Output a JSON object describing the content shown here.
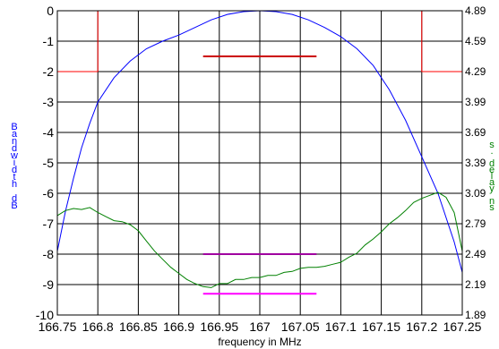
{
  "chart_data": {
    "type": "line",
    "xlabel": "frequency in MHz",
    "xlim": [
      166.75,
      167.25
    ],
    "x_ticks": [
      "166.75",
      "166.8",
      "166.85",
      "166.9",
      "166.95",
      "167",
      "167.05",
      "167.1",
      "167.15",
      "167.2",
      "167.25"
    ],
    "ylim": [
      -10,
      0
    ],
    "y_ticks": [
      "0",
      "-1",
      "-2",
      "-3",
      "-4",
      "-5",
      "-6",
      "-7",
      "-8",
      "-9",
      "-10"
    ],
    "y2lim": [
      1.89,
      4.89
    ],
    "y2_ticks": [
      "4.89",
      "4.59",
      "4.29",
      "3.99",
      "3.69",
      "3.39",
      "3.09",
      "2.79",
      "2.49",
      "2.19",
      "1.89"
    ],
    "left_axis_label": "Bandwidth dB",
    "left_axis_label_color": "#0000ff",
    "right_axis_label": "s. delay ns",
    "right_axis_label_color": "#008000",
    "grid": true,
    "series": [
      {
        "color": "#0000ff",
        "axis": "left",
        "x": [
          166.75,
          166.76,
          166.77,
          166.78,
          166.79,
          166.8,
          166.82,
          166.84,
          166.86,
          166.88,
          166.9,
          166.92,
          166.94,
          166.96,
          166.98,
          167.0,
          167.02,
          167.04,
          167.06,
          167.08,
          167.1,
          167.12,
          167.14,
          167.16,
          167.18,
          167.2,
          167.22,
          167.24,
          167.25
        ],
        "values": [
          -7.9,
          -6.6,
          -5.5,
          -4.5,
          -3.7,
          -3.0,
          -2.2,
          -1.65,
          -1.25,
          -1.0,
          -0.8,
          -0.55,
          -0.3,
          -0.12,
          -0.03,
          0.0,
          -0.03,
          -0.12,
          -0.3,
          -0.55,
          -0.85,
          -1.25,
          -1.8,
          -2.6,
          -3.6,
          -4.8,
          -6.0,
          -7.6,
          -8.6
        ]
      },
      {
        "color": "#008000",
        "axis": "right",
        "x": [
          166.75,
          166.76,
          166.77,
          166.78,
          166.79,
          166.8,
          166.81,
          166.82,
          166.83,
          166.84,
          166.85,
          166.86,
          166.87,
          166.88,
          166.89,
          166.9,
          166.91,
          166.92,
          166.93,
          166.94,
          166.95,
          166.96,
          166.97,
          166.98,
          166.99,
          167.0,
          167.01,
          167.02,
          167.03,
          167.04,
          167.05,
          167.06,
          167.07,
          167.08,
          167.09,
          167.1,
          167.11,
          167.12,
          167.13,
          167.14,
          167.15,
          167.16,
          167.17,
          167.18,
          167.19,
          167.2,
          167.21,
          167.22,
          167.23,
          167.24,
          167.25
        ],
        "values": [
          2.87,
          2.92,
          2.94,
          2.93,
          2.95,
          2.9,
          2.86,
          2.82,
          2.81,
          2.78,
          2.72,
          2.62,
          2.52,
          2.44,
          2.36,
          2.3,
          2.24,
          2.2,
          2.17,
          2.16,
          2.2,
          2.2,
          2.24,
          2.24,
          2.26,
          2.26,
          2.28,
          2.28,
          2.31,
          2.32,
          2.35,
          2.36,
          2.36,
          2.37,
          2.39,
          2.41,
          2.46,
          2.5,
          2.58,
          2.64,
          2.71,
          2.79,
          2.85,
          2.92,
          3.0,
          3.04,
          3.07,
          3.1,
          3.05,
          2.9,
          2.52
        ]
      },
      {
        "color": "#ff0000",
        "axis": "left",
        "x": [
          166.8,
          166.8,
          166.8,
          166.8,
          167.2,
          167.2,
          167.2,
          167.2
        ],
        "values": [
          -2,
          -2,
          0,
          0,
          0,
          0,
          -2,
          -2
        ],
        "note_x_start": 166.75,
        "note_x_end": 167.25
      },
      {
        "color": "#cc0000",
        "axis": "left",
        "x": [
          166.93,
          167.07
        ],
        "values": [
          -1.5,
          -1.5
        ]
      },
      {
        "color": "#a000a0",
        "axis": "left",
        "x": [
          166.93,
          167.07
        ],
        "values": [
          -8.0,
          -8.0
        ]
      },
      {
        "color": "#ff00ff",
        "axis": "left",
        "x": [
          166.93,
          167.07
        ],
        "values": [
          -9.3,
          -9.3
        ]
      }
    ]
  }
}
